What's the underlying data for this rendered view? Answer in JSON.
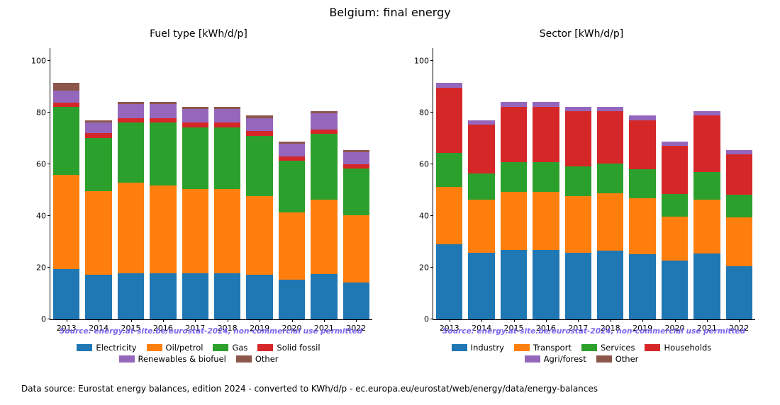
{
  "title": "Belgium: final energy",
  "footer": "Data source: Eurostat energy balances, edition 2024 - converted to KWh/d/p - ec.europa.eu/eurostat/web/energy/data/energy-balances",
  "watermark": "Source: energy.at-site.be/eurostat-2024, non-commercial use permitted",
  "colors": {
    "electricity": "#1f77b4",
    "oil": "#ff7f0e",
    "gas": "#2ca02c",
    "solid": "#d62728",
    "renew": "#9467bd",
    "other": "#8c564b",
    "industry": "#1f77b4",
    "transport": "#ff7f0e",
    "services": "#2ca02c",
    "households": "#d62728",
    "agri": "#9467bd",
    "sector_other": "#8c564b",
    "background": "#ffffff",
    "tick": "#000000",
    "watermark": "#7b68ee"
  },
  "axes": {
    "ymin": 0,
    "ymax": 105,
    "yticks": [
      0,
      20,
      40,
      60,
      80,
      100
    ],
    "ytick_labels": [
      "0",
      "20",
      "40",
      "60",
      "80",
      "100"
    ],
    "bar_width_frac": 0.82
  },
  "categories": [
    "2013",
    "2014",
    "2015",
    "2016",
    "2017",
    "2018",
    "2019",
    "2020",
    "2021",
    "2022"
  ],
  "panels": [
    {
      "title": "Fuel type [kWh/d/p]",
      "series": [
        {
          "key": "electricity",
          "label": "Electricity"
        },
        {
          "key": "oil",
          "label": "Oil/petrol"
        },
        {
          "key": "gas",
          "label": "Gas"
        },
        {
          "key": "solid",
          "label": "Solid fossil"
        },
        {
          "key": "renew",
          "label": "Renewables & biofuel"
        },
        {
          "key": "other",
          "label": "Other"
        }
      ],
      "data": [
        {
          "electricity": 21,
          "oil": 39,
          "gas": 28,
          "solid": 2,
          "renew": 5,
          "other": 3
        },
        {
          "electricity": 20,
          "oil": 38,
          "gas": 24,
          "solid": 2,
          "renew": 5,
          "other": 1
        },
        {
          "electricity": 20,
          "oil": 39,
          "gas": 26,
          "solid": 2,
          "renew": 6,
          "other": 1
        },
        {
          "electricity": 20,
          "oil": 38,
          "gas": 27,
          "solid": 2,
          "renew": 6,
          "other": 1
        },
        {
          "electricity": 20,
          "oil": 37,
          "gas": 27,
          "solid": 2,
          "renew": 6,
          "other": 1
        },
        {
          "electricity": 20,
          "oil": 37,
          "gas": 27,
          "solid": 2,
          "renew": 6,
          "other": 1
        },
        {
          "electricity": 20,
          "oil": 35,
          "gas": 27,
          "solid": 2,
          "renew": 6,
          "other": 1
        },
        {
          "electricity": 19,
          "oil": 32,
          "gas": 25,
          "solid": 2,
          "renew": 6,
          "other": 1
        },
        {
          "electricity": 20,
          "oil": 33,
          "gas": 29,
          "solid": 2,
          "renew": 7,
          "other": 1
        },
        {
          "electricity": 18,
          "oil": 33,
          "gas": 23,
          "solid": 2,
          "renew": 6,
          "other": 1
        }
      ]
    },
    {
      "title": "Sector [kWh/d/p]",
      "series": [
        {
          "key": "industry",
          "label": "Industry"
        },
        {
          "key": "transport",
          "label": "Transport"
        },
        {
          "key": "services",
          "label": "Services"
        },
        {
          "key": "households",
          "label": "Households"
        },
        {
          "key": "agri",
          "label": "Agri/forest"
        },
        {
          "key": "sector_other",
          "label": "Other"
        }
      ],
      "data": [
        {
          "industry": 31,
          "transport": 24,
          "services": 14,
          "households": 27,
          "agri": 2,
          "sector_other": 0
        },
        {
          "industry": 30,
          "transport": 24,
          "services": 12,
          "households": 22,
          "agri": 2,
          "sector_other": 0
        },
        {
          "industry": 30,
          "transport": 25,
          "services": 13,
          "households": 24,
          "agri": 2,
          "sector_other": 0
        },
        {
          "industry": 30,
          "transport": 25,
          "services": 13,
          "households": 24,
          "agri": 2,
          "sector_other": 0
        },
        {
          "industry": 29,
          "transport": 25,
          "services": 13,
          "households": 24,
          "agri": 2,
          "sector_other": 0
        },
        {
          "industry": 30,
          "transport": 25,
          "services": 13,
          "households": 23,
          "agri": 2,
          "sector_other": 0
        },
        {
          "industry": 29,
          "transport": 25,
          "services": 13,
          "households": 22,
          "agri": 2,
          "sector_other": 0
        },
        {
          "industry": 28,
          "transport": 21,
          "services": 11,
          "households": 23,
          "agri": 2,
          "sector_other": 0
        },
        {
          "industry": 29,
          "transport": 24,
          "services": 12,
          "households": 25,
          "agri": 2,
          "sector_other": 0
        },
        {
          "industry": 26,
          "transport": 24,
          "services": 11,
          "households": 20,
          "agri": 2,
          "sector_other": 0
        }
      ]
    }
  ],
  "typography": {
    "main_title_fontsize": 16,
    "panel_title_fontsize": 14,
    "tick_fontsize": 11,
    "legend_fontsize": 11.5,
    "footer_fontsize": 12,
    "watermark_fontsize": 10.5
  }
}
